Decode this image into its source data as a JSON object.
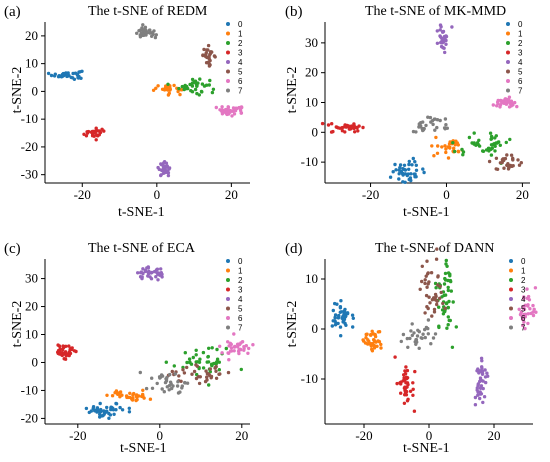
{
  "legend_labels": [
    "0",
    "1",
    "2",
    "3",
    "4",
    "5",
    "6",
    "7"
  ],
  "class_colors": [
    "#1f77b4",
    "#ff7f0e",
    "#2ca02c",
    "#d62728",
    "#9467bd",
    "#8c564b",
    "#e377c2",
    "#7f7f7f"
  ],
  "chart_data": [
    {
      "type": "scatter",
      "panel": "(a)",
      "title": "The t-SNE of REDM",
      "xlabel": "t-SNE-1",
      "ylabel": "t-SNE-2",
      "xlim": [
        -30,
        25
      ],
      "ylim": [
        -33,
        25
      ],
      "xticks": [
        -20,
        0,
        20
      ],
      "yticks": [
        -30,
        -20,
        -10,
        0,
        10,
        20
      ],
      "legend": "top-right",
      "grid": false,
      "clusters": [
        {
          "label": "0",
          "cx": -24,
          "cy": 6,
          "sx": 2.0,
          "sy": 0.8,
          "n": 40
        },
        {
          "label": "1",
          "cx": 3,
          "cy": 1,
          "sx": 2.2,
          "sy": 0.8,
          "n": 30
        },
        {
          "label": "2",
          "cx": 10,
          "cy": 2,
          "sx": 2.0,
          "sy": 1.5,
          "n": 35
        },
        {
          "label": "3",
          "cx": -17,
          "cy": -15,
          "sx": 1.6,
          "sy": 0.8,
          "n": 30
        },
        {
          "label": "4",
          "cx": 2,
          "cy": -28,
          "sx": 0.8,
          "sy": 1.2,
          "n": 30
        },
        {
          "label": "5",
          "cx": 14,
          "cy": 13,
          "sx": 0.8,
          "sy": 1.5,
          "n": 25
        },
        {
          "label": "6",
          "cx": 20,
          "cy": -7,
          "sx": 2.2,
          "sy": 0.8,
          "n": 40
        },
        {
          "label": "7",
          "cx": -3,
          "cy": 21,
          "sx": 1.4,
          "sy": 1.0,
          "n": 30
        }
      ]
    },
    {
      "type": "scatter",
      "panel": "(b)",
      "title": "The t-SNE of MK-MMD",
      "xlabel": "t-SNE-1",
      "ylabel": "t-SNE-2",
      "xlim": [
        -32,
        22
      ],
      "ylim": [
        -17,
        37
      ],
      "xticks": [
        -20,
        0,
        20
      ],
      "yticks": [
        -10,
        0,
        10,
        20,
        30
      ],
      "legend": "top-right",
      "grid": false,
      "clusters": [
        {
          "label": "0",
          "cx": -10,
          "cy": -13,
          "sx": 2.2,
          "sy": 1.8,
          "n": 40
        },
        {
          "label": "1",
          "cx": 1,
          "cy": -5,
          "sx": 2.0,
          "sy": 1.5,
          "n": 30
        },
        {
          "label": "2",
          "cx": 10,
          "cy": -4,
          "sx": 3.5,
          "sy": 1.8,
          "n": 45
        },
        {
          "label": "3",
          "cx": -26,
          "cy": 1.5,
          "sx": 2.5,
          "sy": 0.8,
          "n": 35
        },
        {
          "label": "4",
          "cx": -1,
          "cy": 32,
          "sx": 0.8,
          "sy": 2.0,
          "n": 30
        },
        {
          "label": "5",
          "cx": 16,
          "cy": -10,
          "sx": 1.5,
          "sy": 1.5,
          "n": 30
        },
        {
          "label": "6",
          "cx": 15,
          "cy": 10,
          "sx": 2.0,
          "sy": 1.0,
          "n": 35
        },
        {
          "label": "7",
          "cx": -5,
          "cy": 2,
          "sx": 2.5,
          "sy": 1.5,
          "n": 30
        }
      ]
    },
    {
      "type": "scatter",
      "panel": "(c)",
      "title": "The t-SNE of ECA",
      "xlabel": "t-SNE-1",
      "ylabel": "t-SNE-2",
      "xlim": [
        -28,
        22
      ],
      "ylim": [
        -22,
        37
      ],
      "xticks": [
        -20,
        0,
        20
      ],
      "yticks": [
        -20,
        -10,
        0,
        10,
        20,
        30
      ],
      "legend": "top-right",
      "grid": false,
      "clusters": [
        {
          "label": "0",
          "cx": -13,
          "cy": -17,
          "sx": 2.5,
          "sy": 1.2,
          "n": 45
        },
        {
          "label": "1",
          "cx": -7,
          "cy": -12,
          "sx": 2.5,
          "sy": 1.0,
          "n": 35
        },
        {
          "label": "2",
          "cx": 11,
          "cy": 0,
          "sx": 3.5,
          "sy": 2.5,
          "n": 45
        },
        {
          "label": "3",
          "cx": -23,
          "cy": 4,
          "sx": 1.5,
          "sy": 1.3,
          "n": 35
        },
        {
          "label": "4",
          "cx": -2,
          "cy": 32,
          "sx": 1.8,
          "sy": 1.2,
          "n": 35
        },
        {
          "label": "5",
          "cx": 10,
          "cy": -4,
          "sx": 3.5,
          "sy": 1.8,
          "n": 35
        },
        {
          "label": "6",
          "cx": 19,
          "cy": 5,
          "sx": 1.8,
          "sy": 1.5,
          "n": 35
        },
        {
          "label": "7",
          "cx": 2,
          "cy": -7,
          "sx": 2.5,
          "sy": 2.5,
          "n": 35
        }
      ]
    },
    {
      "type": "scatter",
      "panel": "(d)",
      "title": "The t-SNE of DANN",
      "xlabel": "t-SNE-1",
      "ylabel": "t-SNE-2",
      "xlim": [
        -32,
        32
      ],
      "ylim": [
        -19,
        14
      ],
      "xticks": [
        -20,
        0,
        20
      ],
      "yticks": [
        -10,
        0,
        10
      ],
      "legend": "top-right",
      "grid": false,
      "clusters": [
        {
          "label": "0",
          "cx": -27,
          "cy": 2.5,
          "sx": 1.5,
          "sy": 1.5,
          "n": 45
        },
        {
          "label": "1",
          "cx": -17,
          "cy": -2.5,
          "sx": 1.5,
          "sy": 1.2,
          "n": 35
        },
        {
          "label": "2",
          "cx": 5,
          "cy": 6,
          "sx": 1.5,
          "sy": 4.0,
          "n": 50
        },
        {
          "label": "3",
          "cx": -7,
          "cy": -11,
          "sx": 1.2,
          "sy": 2.5,
          "n": 40
        },
        {
          "label": "4",
          "cx": 16,
          "cy": -10,
          "sx": 1.0,
          "sy": 2.5,
          "n": 40
        },
        {
          "label": "5",
          "cx": 1,
          "cy": 8,
          "sx": 2.5,
          "sy": 3.0,
          "n": 40
        },
        {
          "label": "6",
          "cx": 30,
          "cy": 4,
          "sx": 1.5,
          "sy": 2.0,
          "n": 35
        },
        {
          "label": "7",
          "cx": -3,
          "cy": -1,
          "sx": 2.5,
          "sy": 1.5,
          "n": 30
        }
      ]
    }
  ]
}
